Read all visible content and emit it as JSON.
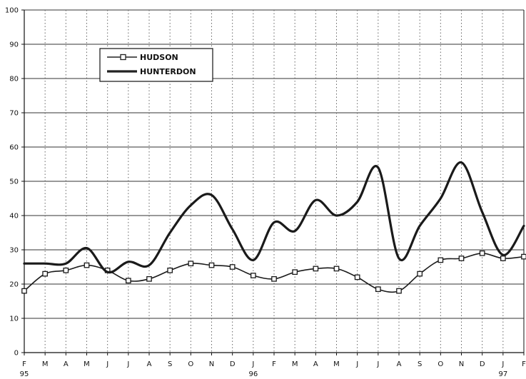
{
  "chart_data": {
    "type": "line",
    "title": "",
    "xlabel": "",
    "ylabel": "",
    "ylim": [
      0,
      100
    ],
    "yticks": [
      0,
      10,
      20,
      30,
      40,
      50,
      60,
      70,
      80,
      90,
      100
    ],
    "grid": {
      "horizontal": "solid",
      "vertical": "dotted"
    },
    "legend": {
      "placement": "upper-left"
    },
    "categories": [
      "F",
      "M",
      "A",
      "M",
      "J",
      "J",
      "A",
      "S",
      "O",
      "N",
      "D",
      "J",
      "F",
      "M",
      "A",
      "M",
      "J",
      "J",
      "A",
      "S",
      "O",
      "N",
      "D",
      "J",
      "F"
    ],
    "year_labels": [
      {
        "index": 0,
        "label": "95"
      },
      {
        "index": 11,
        "label": "96"
      },
      {
        "index": 23,
        "label": "97"
      }
    ],
    "series": [
      {
        "name": "HUDSON",
        "marker": "square",
        "values": [
          18,
          23,
          24,
          25.5,
          24,
          21,
          21.5,
          24,
          26,
          25.5,
          25,
          22.5,
          21.5,
          23.5,
          24.5,
          24.5,
          22,
          18.5,
          18,
          23,
          27,
          27.5,
          29,
          27.5,
          28
        ]
      },
      {
        "name": "HUNTERDON",
        "marker": "none",
        "values": [
          26,
          26,
          26,
          30.5,
          23.5,
          26.5,
          25.5,
          35,
          43,
          46,
          36,
          27,
          38,
          35.5,
          44.5,
          40,
          44,
          54,
          27.5,
          37,
          45,
          55.5,
          41,
          28.5,
          37
        ]
      }
    ]
  }
}
